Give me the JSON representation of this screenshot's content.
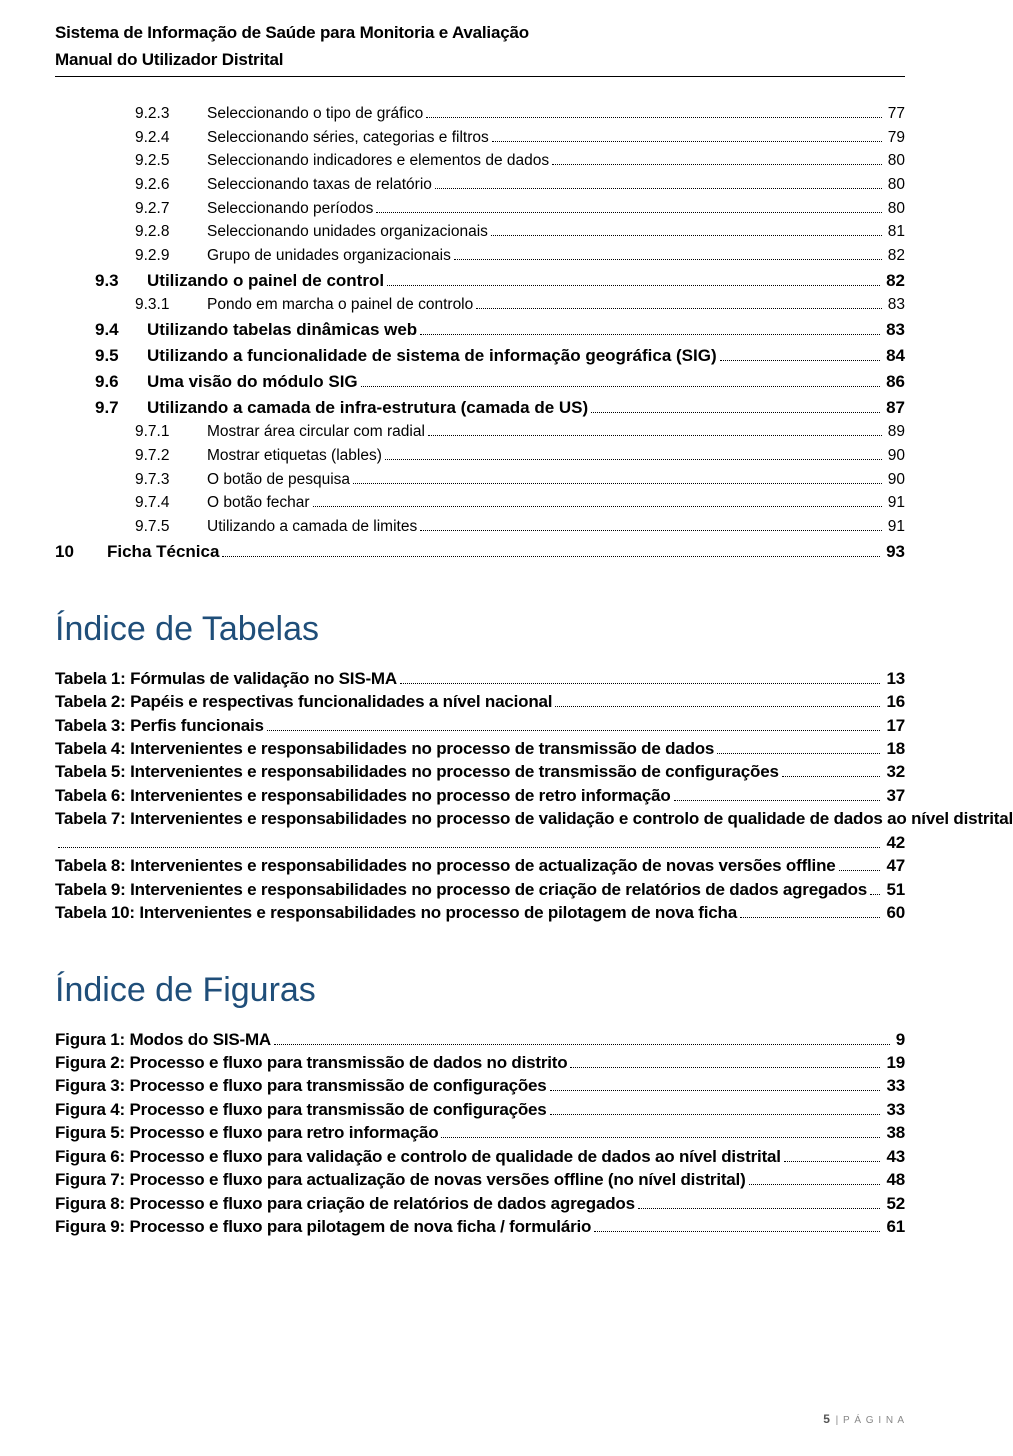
{
  "header": {
    "line1": "Sistema de Informação de Saúde para Monitoria e Avaliação",
    "line2": "Manual do Utilizador Distrital"
  },
  "toc": [
    {
      "level": 2,
      "num": "9.2.3",
      "text": "Seleccionando o tipo de gráfico",
      "page": "77"
    },
    {
      "level": 2,
      "num": "9.2.4",
      "text": "Seleccionando séries, categorias e filtros",
      "page": "79"
    },
    {
      "level": 2,
      "num": "9.2.5",
      "text": "Seleccionando indicadores e elementos de dados",
      "page": "80"
    },
    {
      "level": 2,
      "num": "9.2.6",
      "text": "Seleccionando taxas de relatório",
      "page": "80"
    },
    {
      "level": 2,
      "num": "9.2.7",
      "text": "Seleccionando períodos",
      "page": "80"
    },
    {
      "level": 2,
      "num": "9.2.8",
      "text": "Seleccionando unidades organizacionais",
      "page": "81"
    },
    {
      "level": 2,
      "num": "9.2.9",
      "text": "Grupo de unidades organizacionais",
      "page": "82"
    },
    {
      "level": 1,
      "num": "9.3",
      "text": "Utilizando o painel de control",
      "page": "82"
    },
    {
      "level": 2,
      "num": "9.3.1",
      "text": "Pondo em marcha o painel de controlo",
      "page": "83"
    },
    {
      "level": 1,
      "num": "9.4",
      "text": "Utilizando tabelas dinâmicas web",
      "page": "83"
    },
    {
      "level": 1,
      "num": "9.5",
      "text": "Utilizando a funcionalidade de sistema de informação geográfica (SIG)",
      "page": "84"
    },
    {
      "level": 1,
      "num": "9.6",
      "text": "Uma visão do módulo SIG",
      "page": "86"
    },
    {
      "level": 1,
      "num": "9.7",
      "text": "Utilizando a camada de infra-estrutura (camada de US)",
      "page": "87"
    },
    {
      "level": 2,
      "num": "9.7.1",
      "text": "Mostrar área circular com radial",
      "page": "89"
    },
    {
      "level": 2,
      "num": "9.7.2",
      "text": "Mostrar etiquetas (lables)",
      "page": "90"
    },
    {
      "level": 2,
      "num": "9.7.3",
      "text": "O botão de pesquisa",
      "page": "90"
    },
    {
      "level": 2,
      "num": "9.7.4",
      "text": "O botão fechar",
      "page": "91"
    },
    {
      "level": 2,
      "num": "9.7.5",
      "text": "Utilizando a camada de limites",
      "page": "91"
    },
    {
      "level": 0,
      "num": "10",
      "text": "Ficha Técnica",
      "page": "93"
    }
  ],
  "tables_heading": "Índice de Tabelas",
  "tables": [
    {
      "text": "Tabela 1: Fórmulas de validação no SIS-MA",
      "page": "13"
    },
    {
      "text": "Tabela 2: Papéis e respectivas funcionalidades a nível nacional",
      "page": "16"
    },
    {
      "text": "Tabela 3: Perfis funcionais",
      "page": "17"
    },
    {
      "text": "Tabela 4: Intervenientes e responsabilidades no processo de transmissão de dados",
      "page": "18"
    },
    {
      "text": "Tabela 5: Intervenientes e responsabilidades no processo de transmissão de configurações",
      "page": "32"
    },
    {
      "text": "Tabela 6: Intervenientes e responsabilidades no processo de retro informação",
      "page": "37"
    },
    {
      "text": "Tabela 7: Intervenientes e responsabilidades no processo de validação e controlo de qualidade de dados ao nível distrital",
      "page": "42",
      "wrap": true
    },
    {
      "text": "Tabela 8: Intervenientes e responsabilidades no processo de actualização de novas versões offline",
      "page": "47"
    },
    {
      "text": "Tabela 9: Intervenientes e responsabilidades no processo de criação de relatórios de dados agregados",
      "page": "51"
    },
    {
      "text": "Tabela 10: Intervenientes e responsabilidades no processo de pilotagem de nova ficha",
      "page": "60"
    }
  ],
  "figures_heading": "Índice de Figuras",
  "figures": [
    {
      "text": "Figura 1: Modos do SIS-MA",
      "page": "9"
    },
    {
      "text": "Figura 2: Processo e fluxo para transmissão de dados no distrito",
      "page": "19"
    },
    {
      "text": "Figura 3: Processo e fluxo para transmissão de configurações",
      "page": "33"
    },
    {
      "text": "Figura 4: Processo e fluxo para transmissão de configurações",
      "page": "33"
    },
    {
      "text": "Figura 5: Processo e fluxo para retro informação",
      "page": "38"
    },
    {
      "text": "Figura 6: Processo e fluxo para validação e controlo de qualidade de dados ao nível distrital",
      "page": "43"
    },
    {
      "text": "Figura 7: Processo e fluxo para actualização de novas versões offline (no nível distrital)",
      "page": "48"
    },
    {
      "text": "Figura 8: Processo e fluxo para criação de relatórios de dados agregados",
      "page": "52"
    },
    {
      "text": "Figura 9: Processo e fluxo para pilotagem de nova ficha / formulário",
      "page": "61"
    }
  ],
  "footer": {
    "pagenum": "5",
    "label": "| P Á G I N A"
  }
}
